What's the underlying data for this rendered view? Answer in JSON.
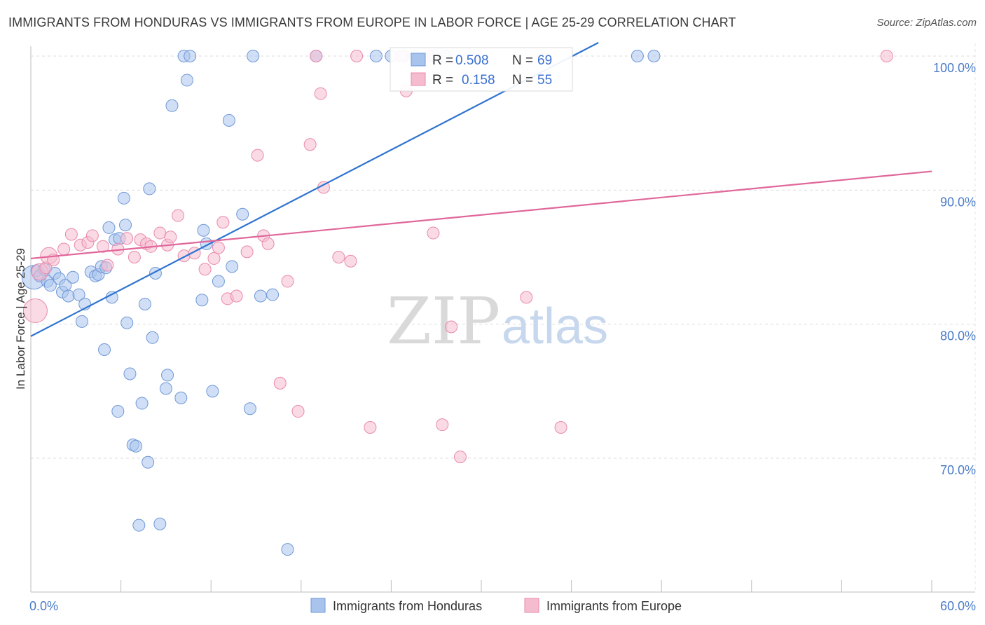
{
  "title": "IMMIGRANTS FROM HONDURAS VS IMMIGRANTS FROM EUROPE IN LABOR FORCE | AGE 25-29 CORRELATION CHART",
  "source": "Source: ZipAtlas.com",
  "watermark": {
    "zip": "ZIP",
    "atlas": "atlas"
  },
  "colors": {
    "blue_fill": "#a9c4ec",
    "blue_stroke": "#6f98d8",
    "blue_line": "#2f74d0",
    "pink_fill": "#f5bcd0",
    "pink_stroke": "#e98aab",
    "pink_line": "#e0679a"
  },
  "chart_data": {
    "type": "scatter",
    "title": "IMMIGRANTS FROM HONDURAS VS IMMIGRANTS FROM EUROPE IN LABOR FORCE | AGE 25-29 CORRELATION CHART",
    "xlabel": "",
    "ylabel": "In Labor Force | Age 25-29",
    "xlim": [
      0,
      60
    ],
    "ylim": [
      60.5,
      102
    ],
    "x_tick_labels": [
      {
        "value": 0,
        "label": "0.0%"
      },
      {
        "value": 60,
        "label": "60.0%"
      }
    ],
    "y_tick_labels": [
      {
        "value": 70,
        "label": "70.0%"
      },
      {
        "value": 80,
        "label": "80.0%"
      },
      {
        "value": 90,
        "label": "90.0%"
      },
      {
        "value": 100,
        "label": "100.0%"
      }
    ],
    "grid": true,
    "legend_position": "bottom",
    "stats": [
      {
        "r_label": "R =",
        "r": "0.508",
        "n_label": "N =",
        "n": "69"
      },
      {
        "r_label": "R =",
        "r": "0.158",
        "n_label": "N =",
        "n": "55"
      }
    ],
    "series": [
      {
        "name": "Immigrants from Honduras",
        "color": "#a9c4ec",
        "trend": {
          "x": [
            0,
            37.8
          ],
          "y": [
            79.1,
            101
          ]
        },
        "points": [
          {
            "x": 0.2,
            "y": 83.5,
            "s": 2
          },
          {
            "x": 0.4,
            "y": 84
          },
          {
            "x": 0.6,
            "y": 83.6
          },
          {
            "x": 0.9,
            "y": 84.1
          },
          {
            "x": 1.1,
            "y": 83.2
          },
          {
            "x": 1.3,
            "y": 82.9
          },
          {
            "x": 1.6,
            "y": 83.8
          },
          {
            "x": 1.9,
            "y": 83.4
          },
          {
            "x": 2.1,
            "y": 82.4
          },
          {
            "x": 2.3,
            "y": 82.9
          },
          {
            "x": 2.5,
            "y": 82.1
          },
          {
            "x": 2.8,
            "y": 83.5
          },
          {
            "x": 3.2,
            "y": 82.2
          },
          {
            "x": 3.4,
            "y": 80.2
          },
          {
            "x": 3.6,
            "y": 81.5
          },
          {
            "x": 4.0,
            "y": 83.9
          },
          {
            "x": 4.3,
            "y": 83.6
          },
          {
            "x": 4.5,
            "y": 83.7
          },
          {
            "x": 4.7,
            "y": 84.3
          },
          {
            "x": 4.9,
            "y": 78.1
          },
          {
            "x": 5.0,
            "y": 84.2
          },
          {
            "x": 5.2,
            "y": 87.2
          },
          {
            "x": 5.4,
            "y": 82.0
          },
          {
            "x": 5.6,
            "y": 86.3
          },
          {
            "x": 5.8,
            "y": 73.5
          },
          {
            "x": 5.9,
            "y": 86.4
          },
          {
            "x": 6.2,
            "y": 89.4
          },
          {
            "x": 6.3,
            "y": 87.4
          },
          {
            "x": 6.4,
            "y": 80.1
          },
          {
            "x": 6.6,
            "y": 76.3
          },
          {
            "x": 6.8,
            "y": 71.0
          },
          {
            "x": 7.0,
            "y": 70.9
          },
          {
            "x": 7.2,
            "y": 65.0
          },
          {
            "x": 7.4,
            "y": 74.1
          },
          {
            "x": 7.6,
            "y": 81.5
          },
          {
            "x": 7.8,
            "y": 69.7
          },
          {
            "x": 7.9,
            "y": 90.1
          },
          {
            "x": 8.1,
            "y": 79.0
          },
          {
            "x": 8.3,
            "y": 83.8
          },
          {
            "x": 8.6,
            "y": 65.1
          },
          {
            "x": 9.0,
            "y": 75.2
          },
          {
            "x": 9.1,
            "y": 76.2
          },
          {
            "x": 9.4,
            "y": 96.3
          },
          {
            "x": 10.0,
            "y": 74.5
          },
          {
            "x": 10.2,
            "y": 100
          },
          {
            "x": 10.4,
            "y": 98.2
          },
          {
            "x": 10.6,
            "y": 100
          },
          {
            "x": 11.4,
            "y": 81.8
          },
          {
            "x": 11.5,
            "y": 87.0
          },
          {
            "x": 11.7,
            "y": 86.0
          },
          {
            "x": 12.1,
            "y": 75.0
          },
          {
            "x": 12.5,
            "y": 83.2
          },
          {
            "x": 13.2,
            "y": 95.2
          },
          {
            "x": 13.4,
            "y": 84.3
          },
          {
            "x": 14.1,
            "y": 88.2
          },
          {
            "x": 14.6,
            "y": 73.7
          },
          {
            "x": 14.8,
            "y": 100
          },
          {
            "x": 15.3,
            "y": 82.1
          },
          {
            "x": 16.1,
            "y": 82.2
          },
          {
            "x": 17.1,
            "y": 63.2
          },
          {
            "x": 19.0,
            "y": 100
          },
          {
            "x": 23.0,
            "y": 100
          },
          {
            "x": 24.0,
            "y": 100
          },
          {
            "x": 24.8,
            "y": 100
          },
          {
            "x": 25.6,
            "y": 100
          },
          {
            "x": 26.8,
            "y": 100
          },
          {
            "x": 27.6,
            "y": 100
          },
          {
            "x": 40.4,
            "y": 100
          },
          {
            "x": 41.5,
            "y": 100
          }
        ]
      },
      {
        "name": "Immigrants from Europe",
        "color": "#f5bcd0",
        "trend": {
          "x": [
            0,
            60
          ],
          "y": [
            84.9,
            91.4
          ]
        },
        "points": [
          {
            "x": 0.3,
            "y": 81.0,
            "s": 2
          },
          {
            "x": 0.6,
            "y": 83.9,
            "s": 1.4
          },
          {
            "x": 1.0,
            "y": 84.2
          },
          {
            "x": 1.2,
            "y": 85.1,
            "s": 1.4
          },
          {
            "x": 1.5,
            "y": 84.8
          },
          {
            "x": 2.2,
            "y": 85.6
          },
          {
            "x": 2.7,
            "y": 86.7
          },
          {
            "x": 3.3,
            "y": 85.9
          },
          {
            "x": 3.8,
            "y": 86.1
          },
          {
            "x": 4.1,
            "y": 86.6
          },
          {
            "x": 4.8,
            "y": 85.8
          },
          {
            "x": 5.1,
            "y": 84.4
          },
          {
            "x": 5.8,
            "y": 85.6
          },
          {
            "x": 6.4,
            "y": 86.4
          },
          {
            "x": 6.9,
            "y": 85.0
          },
          {
            "x": 7.3,
            "y": 86.3
          },
          {
            "x": 7.7,
            "y": 86.0
          },
          {
            "x": 8.0,
            "y": 85.8
          },
          {
            "x": 8.6,
            "y": 86.8
          },
          {
            "x": 9.1,
            "y": 85.9
          },
          {
            "x": 9.3,
            "y": 86.5
          },
          {
            "x": 9.8,
            "y": 88.1
          },
          {
            "x": 10.2,
            "y": 85.1
          },
          {
            "x": 10.9,
            "y": 85.3
          },
          {
            "x": 11.6,
            "y": 84.1
          },
          {
            "x": 12.2,
            "y": 84.9
          },
          {
            "x": 12.5,
            "y": 85.7
          },
          {
            "x": 12.8,
            "y": 87.6
          },
          {
            "x": 13.1,
            "y": 81.9
          },
          {
            "x": 13.7,
            "y": 82.1
          },
          {
            "x": 14.4,
            "y": 85.4
          },
          {
            "x": 15.1,
            "y": 92.6
          },
          {
            "x": 15.5,
            "y": 86.6
          },
          {
            "x": 15.8,
            "y": 86.0
          },
          {
            "x": 16.6,
            "y": 75.6
          },
          {
            "x": 17.1,
            "y": 83.2
          },
          {
            "x": 17.8,
            "y": 73.5
          },
          {
            "x": 18.6,
            "y": 93.4
          },
          {
            "x": 19.0,
            "y": 100
          },
          {
            "x": 19.3,
            "y": 97.2
          },
          {
            "x": 19.5,
            "y": 90.2
          },
          {
            "x": 20.5,
            "y": 85.0
          },
          {
            "x": 21.3,
            "y": 84.7
          },
          {
            "x": 21.7,
            "y": 100
          },
          {
            "x": 22.6,
            "y": 72.3
          },
          {
            "x": 24.7,
            "y": 100
          },
          {
            "x": 25.0,
            "y": 97.4
          },
          {
            "x": 26.5,
            "y": 100
          },
          {
            "x": 26.8,
            "y": 86.8
          },
          {
            "x": 27.4,
            "y": 72.5
          },
          {
            "x": 28.0,
            "y": 79.8
          },
          {
            "x": 28.6,
            "y": 70.1
          },
          {
            "x": 33.0,
            "y": 82.0
          },
          {
            "x": 35.3,
            "y": 72.3
          },
          {
            "x": 57.0,
            "y": 100
          }
        ]
      }
    ]
  }
}
